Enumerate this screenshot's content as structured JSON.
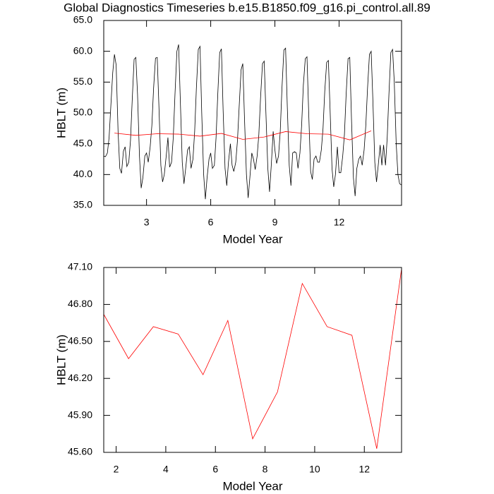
{
  "chart_data": [
    {
      "type": "line",
      "title": "Global Diagnostics Timeseries b.e15.B1850.f09_g16.pi_control.all.89",
      "xlabel": "Model Year",
      "ylabel": "HBLT (m)",
      "xlim": [
        1,
        14.92
      ],
      "ylim": [
        35,
        65
      ],
      "xticks": [
        3,
        6,
        9,
        12
      ],
      "yticks": [
        {
          "value": 35,
          "label": "35.0"
        },
        {
          "value": 40,
          "label": "40.0"
        },
        {
          "value": 45,
          "label": "45.0"
        },
        {
          "value": 50,
          "label": "50.0"
        },
        {
          "value": 55,
          "label": "55.0"
        },
        {
          "value": 60,
          "label": "60.0"
        },
        {
          "value": 65,
          "label": "65.0"
        }
      ],
      "series": [
        {
          "color": "#000000",
          "x": [
            1,
            1.08,
            1.17,
            1.25,
            1.33,
            1.42,
            1.5,
            1.58,
            1.67,
            1.75,
            1.83,
            1.92,
            2,
            2.08,
            2.17,
            2.25,
            2.33,
            2.42,
            2.5,
            2.58,
            2.67,
            2.75,
            2.83,
            2.92,
            3,
            3.08,
            3.17,
            3.25,
            3.33,
            3.42,
            3.5,
            3.58,
            3.67,
            3.75,
            3.83,
            3.92,
            4,
            4.08,
            4.17,
            4.25,
            4.33,
            4.42,
            4.5,
            4.58,
            4.67,
            4.75,
            4.83,
            4.92,
            5,
            5.08,
            5.17,
            5.25,
            5.33,
            5.42,
            5.5,
            5.58,
            5.67,
            5.75,
            5.83,
            5.92,
            6,
            6.08,
            6.17,
            6.25,
            6.33,
            6.42,
            6.5,
            6.58,
            6.67,
            6.75,
            6.83,
            6.92,
            7,
            7.08,
            7.17,
            7.25,
            7.33,
            7.42,
            7.5,
            7.58,
            7.67,
            7.75,
            7.83,
            7.92,
            8,
            8.08,
            8.17,
            8.25,
            8.33,
            8.42,
            8.5,
            8.58,
            8.67,
            8.75,
            8.83,
            8.92,
            9,
            9.08,
            9.17,
            9.25,
            9.33,
            9.42,
            9.5,
            9.58,
            9.67,
            9.75,
            9.83,
            9.92,
            10,
            10.08,
            10.17,
            10.25,
            10.33,
            10.42,
            10.5,
            10.58,
            10.67,
            10.75,
            10.83,
            10.92,
            11,
            11.08,
            11.17,
            11.25,
            11.33,
            11.42,
            11.5,
            11.58,
            11.67,
            11.75,
            11.83,
            11.92,
            12,
            12.08,
            12.17,
            12.25,
            12.33,
            12.42,
            12.5,
            12.58,
            12.67,
            12.75,
            12.83,
            12.92,
            13,
            13.08,
            13.17,
            13.25,
            13.33,
            13.42,
            13.5,
            13.58,
            13.67,
            13.75,
            13.83,
            13.92,
            14,
            14.08,
            14.17,
            14.25,
            14.33,
            14.42,
            14.5,
            14.58,
            14.67,
            14.75,
            14.83,
            14.92
          ],
          "values": [
            43.0,
            42.9,
            43.5,
            46.0,
            51.0,
            56.5,
            59.5,
            57.8,
            47.0,
            41.0,
            40.2,
            43.8,
            44.5,
            41.3,
            42.0,
            45.5,
            52.0,
            58.7,
            59.0,
            53.0,
            43.0,
            37.8,
            39.5,
            43.0,
            43.5,
            42.0,
            44.5,
            48.0,
            54.0,
            58.9,
            59.0,
            51.0,
            41.5,
            38.8,
            40.0,
            43.0,
            46.0,
            41.2,
            42.0,
            46.0,
            53.0,
            60.0,
            61.1,
            52.0,
            42.0,
            38.5,
            41.0,
            44.0,
            44.5,
            41.0,
            42.5,
            47.0,
            54.0,
            60.3,
            60.8,
            50.0,
            40.0,
            36.0,
            39.5,
            42.5,
            43.5,
            41.0,
            41.5,
            46.0,
            53.0,
            59.8,
            60.4,
            50.5,
            41.0,
            38.2,
            42.0,
            45.0,
            41.5,
            40.5,
            42.0,
            45.5,
            51.0,
            57.0,
            58.0,
            49.0,
            40.0,
            36.2,
            39.5,
            43.5,
            42.5,
            40.8,
            43.0,
            46.5,
            52.5,
            58.0,
            58.4,
            50.0,
            41.0,
            37.2,
            41.5,
            47.0,
            44.0,
            41.8,
            43.0,
            47.0,
            54.0,
            60.2,
            60.5,
            51.0,
            41.5,
            38.2,
            43.5,
            43.7,
            43.5,
            41.0,
            43.5,
            48.0,
            54.5,
            58.8,
            59.1,
            50.0,
            40.5,
            39.2,
            42.5,
            43.0,
            42.0,
            42.0,
            44.0,
            47.5,
            53.5,
            58.2,
            58.5,
            50.5,
            41.0,
            38.0,
            40.0,
            44.5,
            40.3,
            40.3,
            43.0,
            46.5,
            53.0,
            58.8,
            59.0,
            49.0,
            39.5,
            36.5,
            41.0,
            42.5,
            43.0,
            41.5,
            44.0,
            48.0,
            54.0,
            59.5,
            60.0,
            52.0,
            42.0,
            38.8,
            41.5,
            44.8,
            41.5,
            44.8,
            41.5,
            46.0,
            53.0,
            59.8,
            60.3,
            55.0,
            45.0,
            40.0,
            38.5,
            38.3
          ]
        },
        {
          "color": "#ff0000",
          "x": [
            1.5,
            2.5,
            3.5,
            4.5,
            5.5,
            6.5,
            7.5,
            8.5,
            9.5,
            10.5,
            11.5,
            12.5,
            13.5
          ],
          "values": [
            46.72,
            46.36,
            46.62,
            46.56,
            46.23,
            46.67,
            45.71,
            46.09,
            46.97,
            46.62,
            46.55,
            45.63,
            47.09
          ]
        }
      ]
    },
    {
      "type": "line",
      "xlabel": "Model Year",
      "ylabel": "HBLT (m)",
      "xlim": [
        1.5,
        13.5
      ],
      "ylim": [
        45.6,
        47.1
      ],
      "xticks": [
        2,
        4,
        6,
        8,
        10,
        12
      ],
      "yticks": [
        {
          "value": 45.6,
          "label": "45.60"
        },
        {
          "value": 45.9,
          "label": "45.90"
        },
        {
          "value": 46.2,
          "label": "46.20"
        },
        {
          "value": 46.5,
          "label": "46.50"
        },
        {
          "value": 46.8,
          "label": "46.80"
        },
        {
          "value": 47.1,
          "label": "47.10"
        }
      ],
      "series": [
        {
          "color": "#ff0000",
          "x": [
            1.5,
            2.5,
            3.5,
            4.5,
            5.5,
            6.5,
            7.5,
            8.5,
            9.5,
            10.5,
            11.5,
            12.5,
            13.5
          ],
          "values": [
            46.72,
            46.36,
            46.62,
            46.56,
            46.23,
            46.67,
            45.71,
            46.09,
            46.97,
            46.62,
            46.55,
            45.63,
            47.09
          ]
        }
      ]
    }
  ]
}
